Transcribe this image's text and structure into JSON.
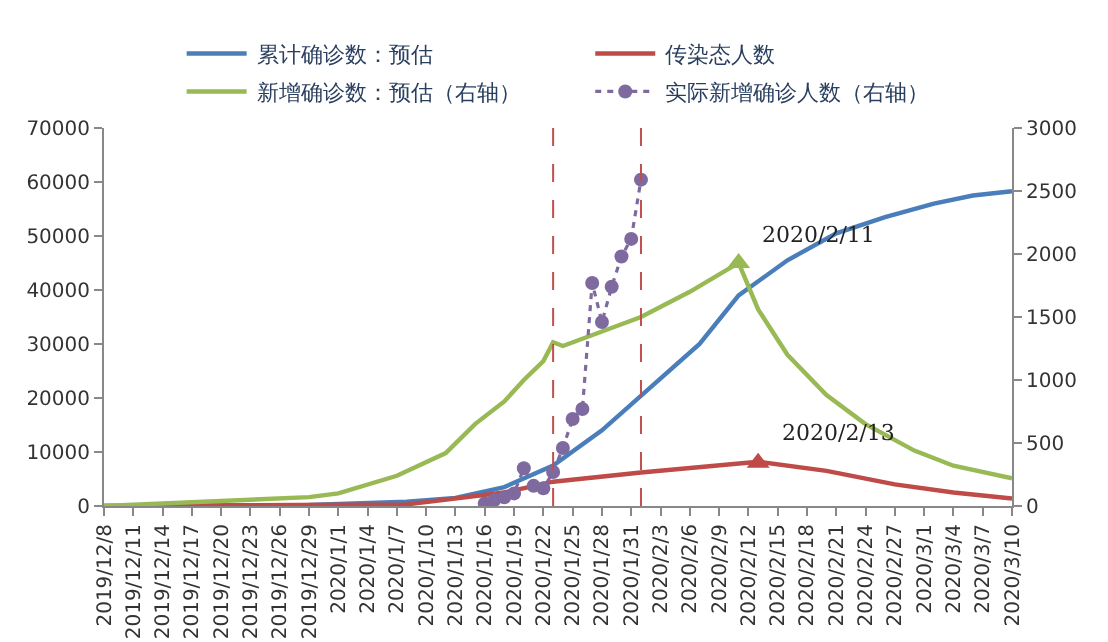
{
  "chart_data": {
    "type": "line",
    "xlim": [
      "2019-12-08",
      "2020-03-10"
    ],
    "xticks": [
      {
        "value": "2019-12-08",
        "label": "2019/12/8"
      },
      {
        "value": "2019-12-11",
        "label": "2019/12/11"
      },
      {
        "value": "2019-12-14",
        "label": "2019/12/14"
      },
      {
        "value": "2019-12-17",
        "label": "2019/12/17"
      },
      {
        "value": "2019-12-20",
        "label": "2019/12/20"
      },
      {
        "value": "2019-12-23",
        "label": "2019/12/23"
      },
      {
        "value": "2019-12-26",
        "label": "2019/12/26"
      },
      {
        "value": "2019-12-29",
        "label": "2019/12/29"
      },
      {
        "value": "2020-01-01",
        "label": "2020/1/1"
      },
      {
        "value": "2020-01-04",
        "label": "2020/1/4"
      },
      {
        "value": "2020-01-07",
        "label": "2020/1/7"
      },
      {
        "value": "2020-01-10",
        "label": "2020/1/10"
      },
      {
        "value": "2020-01-13",
        "label": "2020/1/13"
      },
      {
        "value": "2020-01-16",
        "label": "2020/1/16"
      },
      {
        "value": "2020-01-19",
        "label": "2020/1/19"
      },
      {
        "value": "2020-01-22",
        "label": "2020/1/22"
      },
      {
        "value": "2020-01-25",
        "label": "2020/1/25"
      },
      {
        "value": "2020-01-28",
        "label": "2020/1/28"
      },
      {
        "value": "2020-01-31",
        "label": "2020/1/31"
      },
      {
        "value": "2020-02-03",
        "label": "2020/2/3"
      },
      {
        "value": "2020-02-06",
        "label": "2020/2/6"
      },
      {
        "value": "2020-02-09",
        "label": "2020/2/9"
      },
      {
        "value": "2020-02-12",
        "label": "2020/2/12"
      },
      {
        "value": "2020-02-15",
        "label": "2020/2/15"
      },
      {
        "value": "2020-02-18",
        "label": "2020/2/18"
      },
      {
        "value": "2020-02-21",
        "label": "2020/2/21"
      },
      {
        "value": "2020-02-24",
        "label": "2020/2/24"
      },
      {
        "value": "2020-02-27",
        "label": "2020/2/27"
      },
      {
        "value": "2020-03-01",
        "label": "2020/3/1"
      },
      {
        "value": "2020-03-04",
        "label": "2020/3/4"
      },
      {
        "value": "2020-03-07",
        "label": "2020/3/7"
      },
      {
        "value": "2020-03-10",
        "label": "2020/3/10"
      }
    ],
    "ylim": [
      0,
      70000
    ],
    "yticks": [
      0,
      10000,
      20000,
      30000,
      40000,
      50000,
      60000,
      70000
    ],
    "y2lim": [
      0,
      3000
    ],
    "y2ticks": [
      0,
      500,
      1000,
      1500,
      2000,
      2500,
      3000
    ],
    "legend": "top",
    "ref_lines": [
      {
        "axis": "x",
        "value": "2020-01-23",
        "color": "#c0504d",
        "line_style": "dashed"
      },
      {
        "axis": "x",
        "value": "2020-02-01",
        "color": "#c0504d",
        "line_style": "dashed"
      }
    ],
    "annotations": [
      {
        "text": "2020/2/11",
        "x": "2020-02-11",
        "y": 45000
      },
      {
        "text": "2020/2/13",
        "x": "2020-02-13",
        "y": 8000
      }
    ],
    "series": [
      {
        "name": "累计确诊数：预估",
        "color": "#4a7ebb",
        "x": [
          "2019-12-08",
          "2019-12-29",
          "2020-01-08",
          "2020-01-13",
          "2020-01-18",
          "2020-01-23",
          "2020-01-28",
          "2020-02-02",
          "2020-02-07",
          "2020-02-11",
          "2020-02-16",
          "2020-02-21",
          "2020-02-26",
          "2020-03-02",
          "2020-03-06",
          "2020-03-10"
        ],
        "values": [
          0,
          200,
          800,
          1500,
          3500,
          7500,
          14000,
          22000,
          30000,
          39000,
          45500,
          50500,
          53500,
          56000,
          57500,
          58300
        ]
      },
      {
        "name": "传染态人数",
        "color": "#be4b48",
        "x": [
          "2019-12-08",
          "2020-01-08",
          "2020-01-18",
          "2020-01-23",
          "2020-02-01",
          "2020-02-13",
          "2020-02-20",
          "2020-02-27",
          "2020-03-04",
          "2020-03-10"
        ],
        "values": [
          0,
          300,
          2500,
          4500,
          6200,
          8200,
          6500,
          4000,
          2500,
          1400
        ]
      },
      {
        "name": "新增确诊数：预估（右轴）",
        "color": "#98b954",
        "axis": "y2",
        "x": [
          "2019-12-08",
          "2019-12-29",
          "2020-01-01",
          "2020-01-07",
          "2020-01-12",
          "2020-01-15",
          "2020-01-18",
          "2020-01-20",
          "2020-01-22",
          "2020-01-23",
          "2020-01-24",
          "2020-02-01",
          "2020-02-06",
          "2020-02-11",
          "2020-02-13",
          "2020-02-16",
          "2020-02-20",
          "2020-02-24",
          "2020-02-29",
          "2020-03-04",
          "2020-03-10"
        ],
        "values": [
          0,
          70,
          100,
          240,
          420,
          650,
          830,
          1000,
          1150,
          1300,
          1270,
          1500,
          1700,
          1930,
          1560,
          1200,
          880,
          650,
          440,
          320,
          220
        ]
      },
      {
        "name": "实际新增确诊人数（右轴）",
        "color": "#7f6a9f",
        "axis": "y2",
        "marker": "circle",
        "line_style": "dotted",
        "x": [
          "2020-01-16",
          "2020-01-17",
          "2020-01-18",
          "2020-01-19",
          "2020-01-20",
          "2020-01-21",
          "2020-01-22",
          "2020-01-23",
          "2020-01-24",
          "2020-01-25",
          "2020-01-26",
          "2020-01-27",
          "2020-01-28",
          "2020-01-29",
          "2020-01-30",
          "2020-01-31",
          "2020-02-01"
        ],
        "values": [
          20,
          50,
          70,
          100,
          300,
          160,
          140,
          270,
          460,
          690,
          770,
          1770,
          1460,
          1740,
          1980,
          2120,
          2590
        ]
      }
    ]
  }
}
